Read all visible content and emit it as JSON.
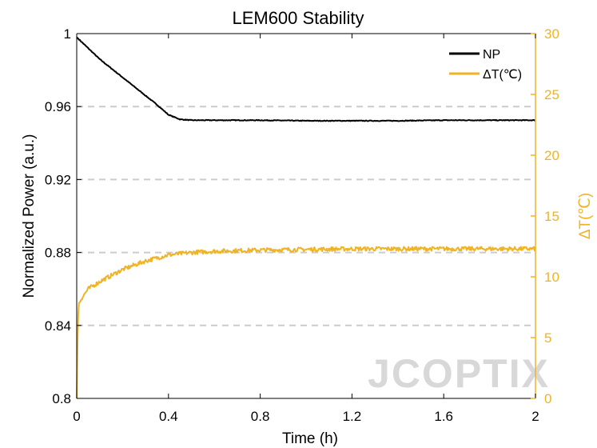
{
  "chart_data": {
    "type": "line",
    "title": "LEM600 Stability",
    "xlabel": "Time (h)",
    "ylabel": "Normalized Power (a.u.)",
    "y2label": "ΔT(℃)",
    "xlim": [
      0,
      2
    ],
    "ylim": [
      0.8,
      1.0
    ],
    "y2lim": [
      0,
      30
    ],
    "xticks": [
      "0",
      "0.4",
      "0.8",
      "1.2",
      "1.6",
      "2"
    ],
    "xtick_values": [
      0,
      0.4,
      0.8,
      1.2,
      1.6,
      2.0
    ],
    "yticks": [
      "0.8",
      "0.84",
      "0.88",
      "0.92",
      "0.96",
      "1"
    ],
    "ytick_values": [
      0.8,
      0.84,
      0.88,
      0.92,
      0.96,
      1.0
    ],
    "y2ticks": [
      "0",
      "5",
      "10",
      "15",
      "20",
      "25",
      "30"
    ],
    "y2tick_values": [
      0,
      5,
      10,
      15,
      20,
      25,
      30
    ],
    "grid": "horizontal dashed",
    "legend_position": "top-right",
    "series": [
      {
        "name": "NP",
        "axis": "left",
        "color": "#000000",
        "x": [
          0,
          0.05,
          0.1,
          0.15,
          0.2,
          0.25,
          0.3,
          0.35,
          0.4,
          0.45,
          0.5,
          0.6,
          0.8,
          1.0,
          1.2,
          1.4,
          1.6,
          1.8,
          2.0
        ],
        "y": [
          0.998,
          0.992,
          0.986,
          0.981,
          0.976,
          0.971,
          0.966,
          0.961,
          0.9555,
          0.953,
          0.9525,
          0.9525,
          0.9525,
          0.9522,
          0.9522,
          0.9522,
          0.9525,
          0.9525,
          0.9525
        ]
      },
      {
        "name": "ΔT(℃)",
        "axis": "right",
        "color": "#f0b323",
        "x": [
          0,
          0.005,
          0.01,
          0.02,
          0.05,
          0.1,
          0.2,
          0.3,
          0.4,
          0.5,
          0.6,
          0.8,
          1.0,
          1.2,
          1.4,
          1.6,
          1.8,
          2.0
        ],
        "y": [
          0,
          6.5,
          7.8,
          8.2,
          9.0,
          9.6,
          10.6,
          11.3,
          11.8,
          12.0,
          12.1,
          12.2,
          12.25,
          12.3,
          12.3,
          12.3,
          12.3,
          12.3
        ]
      }
    ]
  },
  "watermark": "JCOPTIX",
  "colors": {
    "left_axis": "#000000",
    "right_axis": "#f0b323",
    "grid": "#cccccc"
  }
}
